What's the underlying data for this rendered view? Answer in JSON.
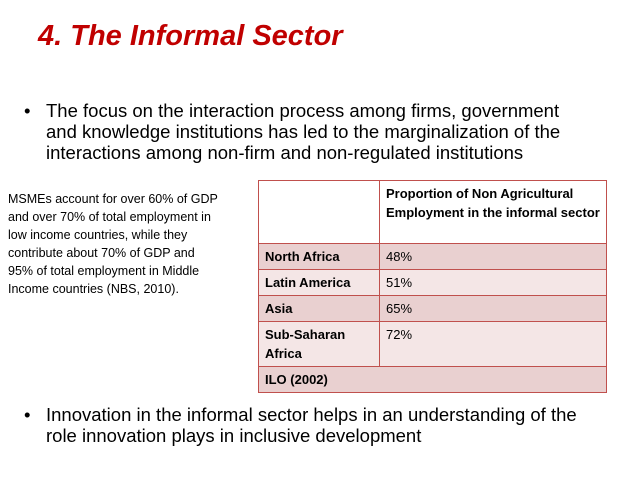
{
  "header": {
    "title": "4. The Informal Sector"
  },
  "bullets": [
    {
      "lines": [
        "The focus on the interaction process among firms, government",
        "and knowledge institutions has led to the marginalization of the",
        "interactions among non-firm and non-regulated institutions"
      ]
    },
    {
      "lines": [
        "Innovation in the informal sector helps in an understanding of the",
        "role innovation plays in inclusive development"
      ]
    }
  ],
  "note": {
    "lines": [
      "MSMEs account for over 60% of GDP",
      "and over 70% of total  employment in",
      "low income  countries, while they",
      "contribute about 70% of GDP and",
      "95% of  total employment in Middle",
      "Income countries (NBS, 2010)."
    ]
  },
  "table": {
    "header": [
      "Proportion of Non Agricultural Employment in the informal sector"
    ],
    "rows": [
      [
        "North Africa",
        "48%"
      ],
      [
        "Latin America",
        "51%"
      ],
      [
        "Asia",
        "65%"
      ],
      [
        "Sub-Saharan Africa",
        "72%"
      ]
    ],
    "source": "ILO (2002)"
  }
}
